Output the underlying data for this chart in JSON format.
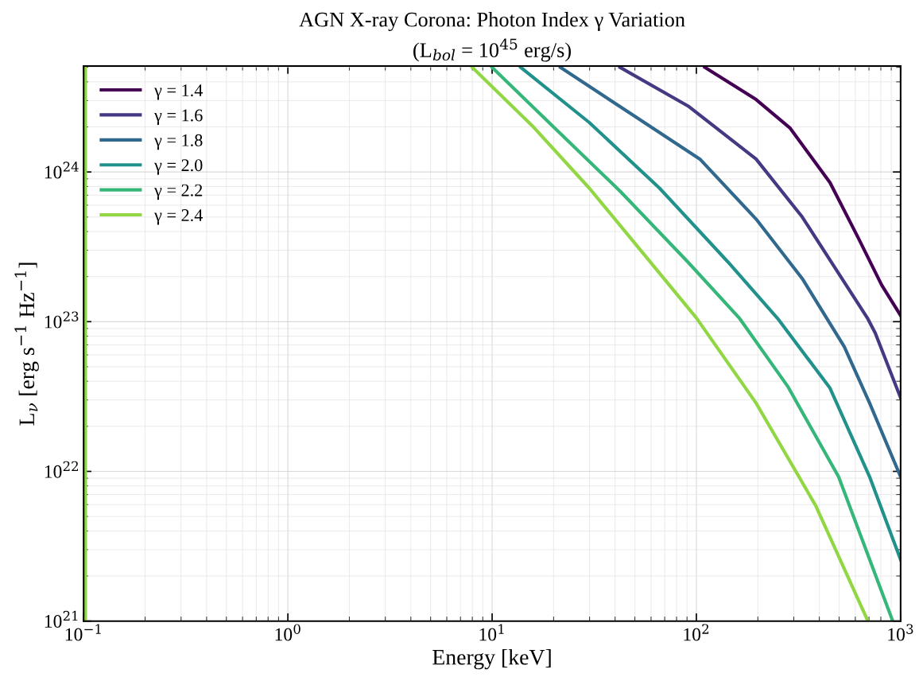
{
  "chart_data": {
    "type": "line",
    "title": "AGN X-ray Corona: Photon Index γ Variation",
    "subtitle": "(L$_{bol}$ = 10$^{45}$ erg/s)",
    "xlabel": "Energy [keV]",
    "ylabel": "L$_{ν}$ [erg s$^{−1}$ Hz$^{−1}$]",
    "ref_lines": [
      {
        "axis": "x",
        "value": 0.102,
        "color": "#90d743"
      }
    ],
    "log": "xy",
    "grid": true,
    "legend": "top left",
    "line_style": "solid",
    "marker": "none",
    "xlim": [
      0.1,
      1000
    ],
    "ylim": [
      1e+21,
      5.1e+24
    ],
    "xticks": [
      {
        "value": 0.1,
        "label": "10$^{−1}$"
      },
      {
        "value": 1,
        "label": "10$^{0}$"
      },
      {
        "value": 10,
        "label": "10$^{1}$"
      },
      {
        "value": 100,
        "label": "10$^{2}$"
      },
      {
        "value": 1000,
        "label": "10$^{3}$"
      }
    ],
    "yticks": [
      {
        "value": 1e+21,
        "label": "10$^{21}$"
      },
      {
        "value": 1e+22,
        "label": "10$^{22}$"
      },
      {
        "value": 1e+23,
        "label": "10$^{23}$"
      },
      {
        "value": 1e+24,
        "label": "10$^{24}$"
      }
    ],
    "series": [
      {
        "name": "γ = 1.4",
        "color": "#440154",
        "x": [
          110,
          196,
          288,
          451,
          622,
          807,
          1000
        ],
        "values": [
          5e+24,
          3.05e+24,
          1.96e+24,
          8.5e+23,
          3.6e+23,
          1.76e+23,
          1.1e+23
        ]
      },
      {
        "name": "γ = 1.6",
        "color": "#443983",
        "x": [
          42.3,
          91,
          196,
          330,
          516,
          687,
          751,
          1000
        ],
        "values": [
          5e+24,
          2.76e+24,
          1.22e+24,
          5e+23,
          1.94e+23,
          1.06e+23,
          8.4e+22,
          3.1e+22
        ]
      },
      {
        "name": "γ = 1.8",
        "color": "#31688e",
        "x": [
          21.6,
          48,
          104,
          196,
          330,
          530,
          705,
          1000
        ],
        "values": [
          5e+24,
          2.44e+24,
          1.22e+24,
          4.85e+23,
          1.94e+23,
          6.8e+22,
          2.86e+22,
          9.2e+21
        ]
      },
      {
        "name": "γ = 2.0",
        "color": "#21918c",
        "x": [
          13.8,
          29.9,
          66,
          143,
          250,
          451,
          705,
          1000
        ],
        "values": [
          5e+24,
          2.14e+24,
          7.8e+23,
          2.5e+23,
          1.05e+23,
          3.6e+22,
          9.2e+21,
          2.57e+21
        ]
      },
      {
        "name": "γ = 2.2",
        "color": "#35b779",
        "x": [
          10,
          20.3,
          42.3,
          91,
          162,
          280,
          497,
          910
        ],
        "values": [
          5e+24,
          1.96e+24,
          7.45e+23,
          2.5e+23,
          1.06e+23,
          3.7e+22,
          9.2e+21,
          1.02e+21
        ]
      },
      {
        "name": "γ = 2.4",
        "color": "#90d743",
        "x": [
          8.0,
          15.7,
          29.9,
          66,
          100,
          196,
          384,
          687
        ],
        "values": [
          5e+24,
          2.04e+24,
          7.8e+23,
          2.11e+23,
          1.06e+23,
          2.86e+22,
          5.9e+21,
          1.02e+21
        ]
      }
    ]
  }
}
